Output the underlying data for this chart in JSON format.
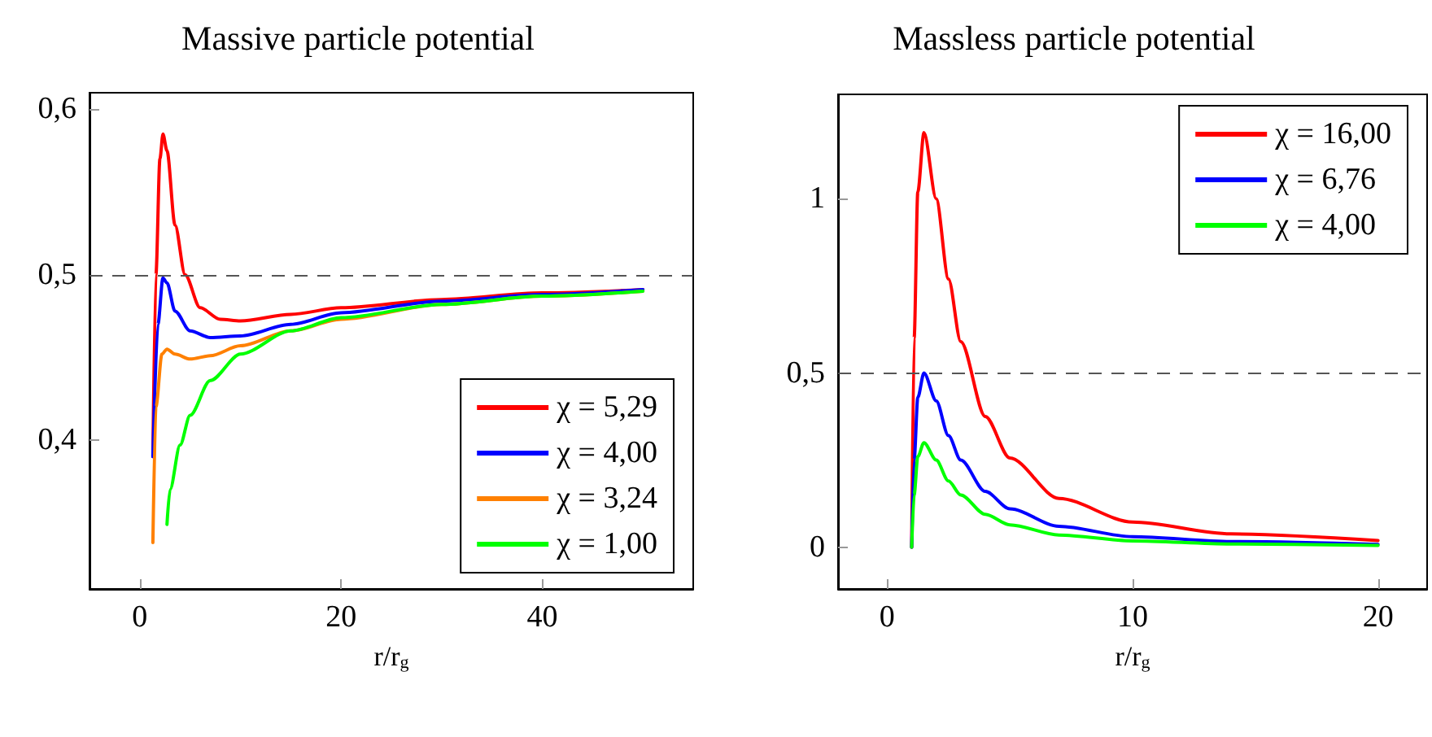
{
  "chart_data": [
    {
      "type": "line",
      "title": "Massive particle potential",
      "xlabel": "r/r$_{g}$",
      "xlim": [
        -5,
        55
      ],
      "xticks": [
        0,
        20,
        40
      ],
      "ylim": [
        0.31,
        0.61
      ],
      "yticks": [
        {
          "value": 0.4,
          "label": "0,4"
        },
        {
          "value": 0.5,
          "label": "0,5"
        },
        {
          "value": 0.6,
          "label": "0,6"
        }
      ],
      "legend": "bottom right",
      "grid": false,
      "ref_lines": [
        {
          "axis": "y",
          "value": 0.5,
          "color": "#555555",
          "line_style": "dashed"
        }
      ],
      "series": [
        {
          "name": "χ = 5,29",
          "color": "#ff0000",
          "x": [
            1.3,
            1.6,
            2.0,
            2.3,
            2.7,
            3.5,
            4.5,
            6,
            8,
            10,
            15,
            20,
            30,
            40,
            50
          ],
          "values": [
            0.39,
            0.5,
            0.57,
            0.585,
            0.575,
            0.53,
            0.5,
            0.48,
            0.473,
            0.472,
            0.476,
            0.48,
            0.485,
            0.489,
            0.491
          ]
        },
        {
          "name": "χ = 4,00",
          "color": "#0000ff",
          "x": [
            1.3,
            1.8,
            2.3,
            2.7,
            3.5,
            5,
            7,
            10,
            15,
            20,
            30,
            40,
            50
          ],
          "values": [
            0.39,
            0.47,
            0.498,
            0.495,
            0.478,
            0.466,
            0.462,
            0.463,
            0.47,
            0.477,
            0.484,
            0.488,
            0.491
          ]
        },
        {
          "name": "χ = 3,24",
          "color": "#ff8000",
          "x": [
            1.3,
            1.6,
            2.2,
            2.7,
            3.5,
            5,
            7,
            10,
            15,
            20,
            30,
            40,
            50
          ],
          "values": [
            0.338,
            0.42,
            0.452,
            0.455,
            0.452,
            0.449,
            0.451,
            0.457,
            0.466,
            0.473,
            0.482,
            0.487,
            0.49
          ]
        },
        {
          "name": "χ = 1,00",
          "color": "#00ff00",
          "x": [
            2.7,
            3,
            4,
            5,
            7,
            10,
            15,
            20,
            30,
            40,
            50
          ],
          "values": [
            0.349,
            0.37,
            0.397,
            0.415,
            0.436,
            0.452,
            0.466,
            0.474,
            0.482,
            0.487,
            0.49
          ]
        }
      ]
    },
    {
      "type": "line",
      "title": "Massless particle potential",
      "xlabel": "r/r$_{g}$",
      "xlim": [
        -2,
        22
      ],
      "xticks": [
        0,
        10,
        20
      ],
      "ylim": [
        -0.12,
        1.3
      ],
      "yticks": [
        {
          "value": 0,
          "label": "0"
        },
        {
          "value": 0.5,
          "label": "0,5"
        },
        {
          "value": 1,
          "label": "1"
        }
      ],
      "legend": "top right",
      "grid": false,
      "ref_lines": [
        {
          "axis": "y",
          "value": 0.5,
          "color": "#555555",
          "line_style": "dashed"
        }
      ],
      "series": [
        {
          "name": "χ = 16,00",
          "color": "#ff0000",
          "x": [
            1,
            1.1,
            1.25,
            1.5,
            2,
            2.5,
            3,
            4,
            5,
            7,
            10,
            14,
            20
          ],
          "values": [
            0,
            0.6,
            1.02,
            1.19,
            1.0,
            0.77,
            0.59,
            0.375,
            0.256,
            0.14,
            0.072,
            0.038,
            0.019
          ]
        },
        {
          "name": "χ = 6,76",
          "color": "#0000ff",
          "x": [
            1,
            1.1,
            1.25,
            1.5,
            2,
            2.5,
            3,
            4,
            5,
            7,
            10,
            14,
            20
          ],
          "values": [
            0,
            0.25,
            0.43,
            0.5,
            0.42,
            0.32,
            0.25,
            0.16,
            0.11,
            0.06,
            0.03,
            0.016,
            0.008
          ]
        },
        {
          "name": "χ = 4,00",
          "color": "#00ff00",
          "x": [
            1,
            1.1,
            1.25,
            1.5,
            2,
            2.5,
            3,
            4,
            5,
            7,
            10,
            14,
            20
          ],
          "values": [
            0,
            0.15,
            0.26,
            0.3,
            0.25,
            0.19,
            0.15,
            0.094,
            0.064,
            0.035,
            0.018,
            0.009,
            0.005
          ]
        }
      ]
    }
  ]
}
